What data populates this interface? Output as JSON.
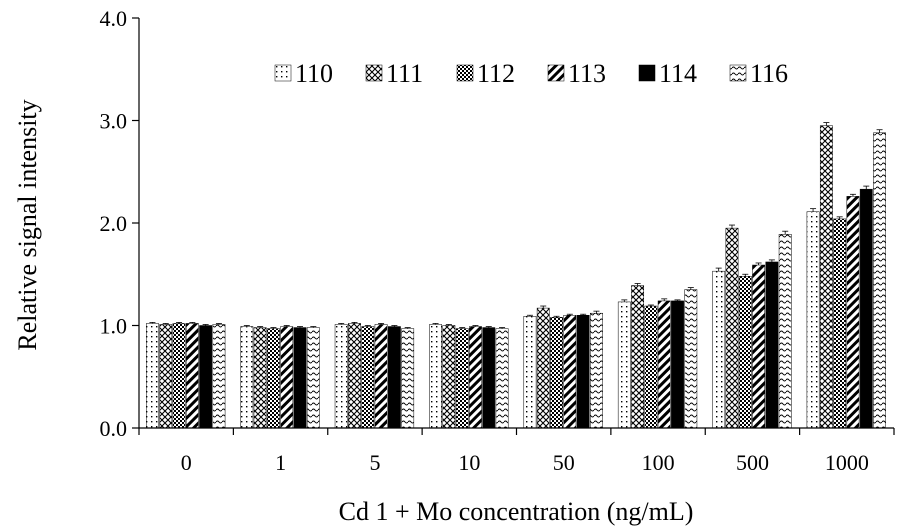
{
  "chart_data": {
    "type": "bar",
    "title": "",
    "xlabel": "Cd 1 + Mo concentration (ng/mL)",
    "ylabel": "Relative signal intensity",
    "ylim": [
      0,
      4
    ],
    "yticks": [
      0,
      1,
      2,
      3,
      4
    ],
    "ytick_labels": [
      "0.0",
      "1.0",
      "2.0",
      "3.0",
      "4.0"
    ],
    "categories": [
      "0",
      "1",
      "5",
      "10",
      "50",
      "100",
      "500",
      "1000"
    ],
    "grid": false,
    "legend_position": "top",
    "series": [
      {
        "name": "110",
        "pattern": "dots-sparse",
        "values": [
          1.02,
          0.99,
          1.01,
          1.01,
          1.09,
          1.23,
          1.53,
          2.11
        ],
        "errors": [
          0.01,
          0.01,
          0.01,
          0.01,
          0.01,
          0.02,
          0.03,
          0.03
        ]
      },
      {
        "name": "111",
        "pattern": "crosshatch",
        "values": [
          1.01,
          0.98,
          1.02,
          1.0,
          1.17,
          1.39,
          1.95,
          2.95
        ],
        "errors": [
          0.01,
          0.01,
          0.01,
          0.01,
          0.02,
          0.02,
          0.03,
          0.03
        ]
      },
      {
        "name": "112",
        "pattern": "checker-dense",
        "values": [
          1.02,
          0.97,
          0.99,
          0.97,
          1.08,
          1.19,
          1.48,
          2.04
        ],
        "errors": [
          0.01,
          0.01,
          0.01,
          0.01,
          0.01,
          0.01,
          0.02,
          0.02
        ]
      },
      {
        "name": "113",
        "pattern": "diagonal",
        "values": [
          1.02,
          0.99,
          1.01,
          0.99,
          1.1,
          1.24,
          1.59,
          2.26
        ],
        "errors": [
          0.01,
          0.01,
          0.01,
          0.01,
          0.01,
          0.02,
          0.02,
          0.02
        ]
      },
      {
        "name": "114",
        "pattern": "solid",
        "values": [
          1.0,
          0.98,
          0.99,
          0.98,
          1.1,
          1.24,
          1.62,
          2.33
        ],
        "errors": [
          0.01,
          0.01,
          0.01,
          0.01,
          0.01,
          0.01,
          0.02,
          0.03
        ]
      },
      {
        "name": "116",
        "pattern": "wave",
        "values": [
          1.01,
          0.98,
          0.97,
          0.97,
          1.12,
          1.35,
          1.89,
          2.88
        ],
        "errors": [
          0.01,
          0.01,
          0.01,
          0.01,
          0.02,
          0.02,
          0.03,
          0.03
        ]
      }
    ]
  }
}
